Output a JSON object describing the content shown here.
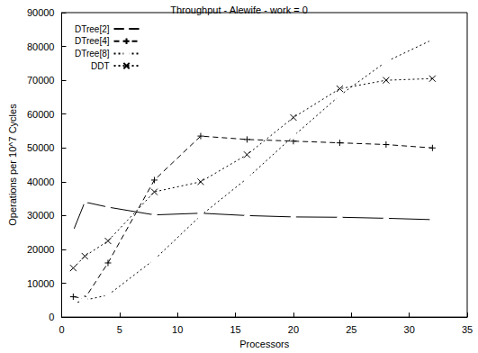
{
  "chart_data": {
    "type": "line",
    "title": "Throughput - Alewife - work = 0",
    "x_label": "Processors",
    "y_label": "Operations per 10^7 Cycles",
    "xlim": [
      0,
      35
    ],
    "xticks": [
      0,
      5,
      10,
      15,
      20,
      25,
      30,
      35
    ],
    "ylim": [
      0,
      90000
    ],
    "yticks": [
      0,
      10000,
      20000,
      30000,
      40000,
      50000,
      60000,
      70000,
      80000,
      90000
    ],
    "grid": false,
    "legend": "upper left",
    "x": [
      1,
      2,
      4,
      8,
      12,
      16,
      20,
      24,
      28,
      32
    ],
    "series": [
      {
        "name": "DTree[2]",
        "color": "#000000",
        "marker": "diamond",
        "line_style": "solid",
        "values": [
          25500,
          34000,
          32500,
          30200,
          30700,
          30000,
          29600,
          29500,
          29200,
          28800
        ]
      },
      {
        "name": "DTree[4]",
        "color": "#000000",
        "marker": "plus",
        "line_style": "dashed",
        "values": [
          6000,
          5500,
          16000,
          40500,
          53500,
          52500,
          52000,
          51500,
          51000,
          50000
        ]
      },
      {
        "name": "DTree[8]",
        "color": "#000000",
        "marker": "square",
        "line_style": "dotted",
        "values": [
          4000,
          5000,
          6500,
          17000,
          30000,
          41000,
          53500,
          65500,
          75500,
          82000
        ]
      },
      {
        "name": "DDT",
        "color": "#000000",
        "marker": "x",
        "line_style": "dotted",
        "values": [
          14500,
          18000,
          22500,
          37000,
          40000,
          48000,
          59000,
          67500,
          70000,
          70500
        ]
      }
    ]
  }
}
